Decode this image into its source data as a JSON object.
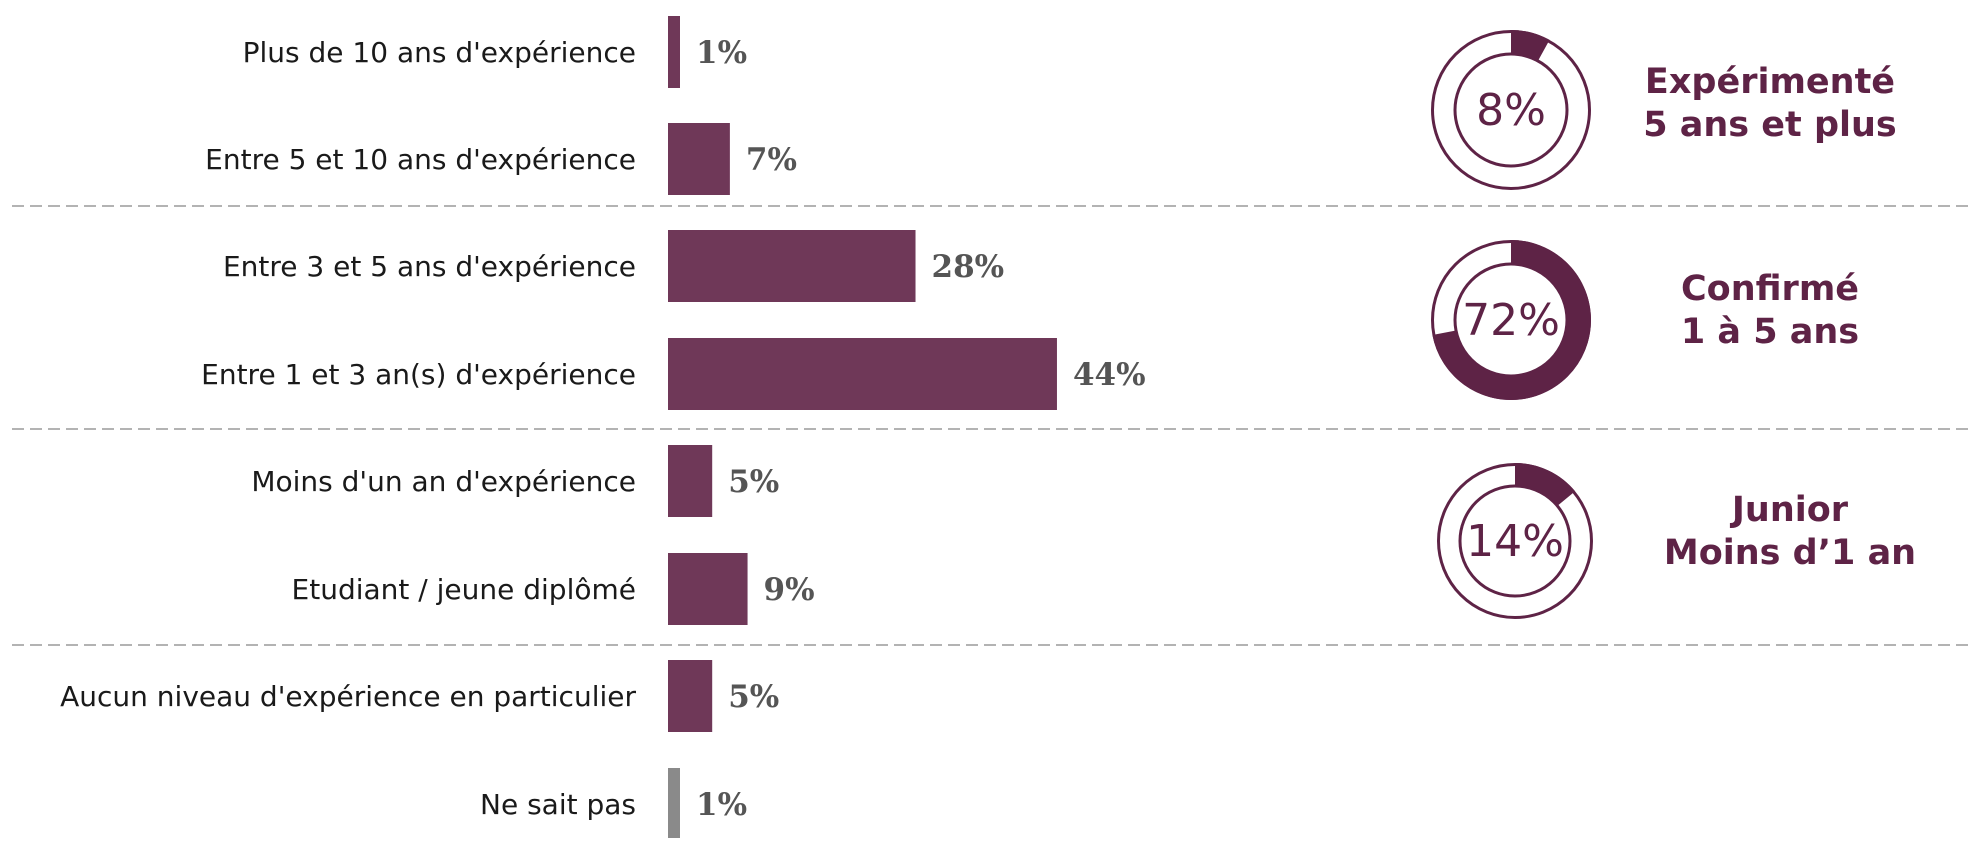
{
  "chart_data": {
    "type": "bar",
    "orientation": "horizontal",
    "categories": [
      "Plus de 10 ans d'expérience",
      "Entre 5 et 10 ans d'expérience",
      "Entre 3 et 5 ans d'expérience",
      "Entre 1 et 3 an(s) d'expérience",
      "Moins d'un an d'expérience",
      "Etudiant / jeune diplômé",
      "Aucun niveau d'expérience en particulier",
      "Ne sait pas"
    ],
    "values": [
      1,
      7,
      28,
      44,
      5,
      9,
      5,
      1
    ],
    "value_labels": [
      "1%",
      "7%",
      "28%",
      "44%",
      "5%",
      "9%",
      "5%",
      "1%"
    ],
    "unit": "%",
    "bar_colors": [
      "#6f3858",
      "#6f3858",
      "#6f3858",
      "#6f3858",
      "#6f3858",
      "#6f3858",
      "#6f3858",
      "#8a8a8a"
    ],
    "grid": false,
    "group_separators": "dashed lines between groups",
    "groups": [
      {
        "value": 8,
        "value_label": "8%",
        "title_lines": [
          "Expérimenté",
          "5 ans et plus"
        ]
      },
      {
        "value": 72,
        "value_label": "72%",
        "title_lines": [
          "Confirmé",
          "1 à 5 ans"
        ]
      },
      {
        "value": 14,
        "value_label": "14%",
        "title_lines": [
          "Junior",
          "Moins d’1 an"
        ]
      }
    ],
    "colors": {
      "accent": "#6f3858",
      "donut": "#5e2346",
      "title": "#5e2346",
      "neutral": "#8a8a8a",
      "separator": "#9a9a9a"
    }
  }
}
